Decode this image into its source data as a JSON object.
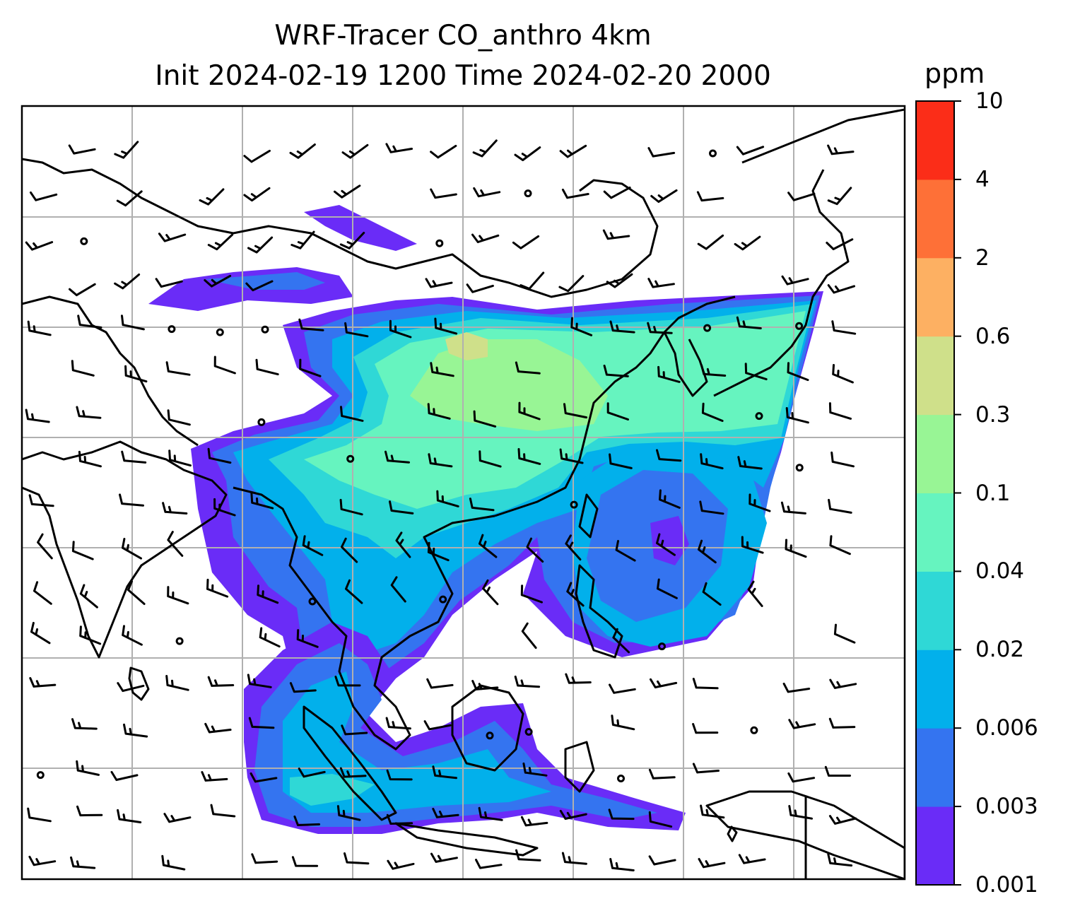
{
  "title": {
    "line1": "WRF-Tracer CO_anthro 4km",
    "line2": "Init 2024-02-19 1200 Time 2024-02-20 2000"
  },
  "colorbar": {
    "unit": "ppm",
    "levels": [
      "0.001",
      "0.003",
      "0.006",
      "0.02",
      "0.04",
      "0.1",
      "0.3",
      "0.6",
      "2",
      "4",
      "10"
    ],
    "colors": [
      "#6a2cf7",
      "#3474f0",
      "#02b0eb",
      "#2fd8d6",
      "#66f4bf",
      "#98f595",
      "#cfe08a",
      "#fdb062",
      "#fe7037",
      "#fb2d18"
    ]
  },
  "map": {
    "gridlines": true,
    "coastline_color": "#000000",
    "gridline_color": "#b0b0b0"
  }
}
